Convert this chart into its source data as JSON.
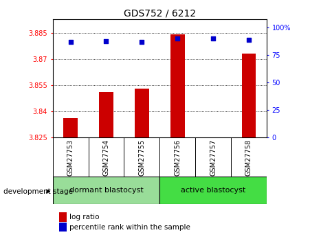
{
  "title": "GDS752 / 6212",
  "samples": [
    "GSM27753",
    "GSM27754",
    "GSM27755",
    "GSM27756",
    "GSM27757",
    "GSM27758"
  ],
  "log_ratio": [
    3.836,
    3.851,
    3.853,
    3.884,
    3.825,
    3.873
  ],
  "percentile_rank": [
    87,
    88,
    87,
    90,
    90,
    89
  ],
  "bar_base": 3.825,
  "ylim": [
    3.825,
    3.893
  ],
  "yticks": [
    3.825,
    3.84,
    3.855,
    3.87,
    3.885
  ],
  "ytick_labels": [
    "3.825",
    "3.84",
    "3.855",
    "3.87",
    "3.885"
  ],
  "y2lim": [
    0,
    108
  ],
  "y2ticks": [
    0,
    25,
    50,
    75,
    100
  ],
  "y2tick_labels": [
    "0",
    "25",
    "50",
    "75",
    "100%"
  ],
  "bar_color": "#cc0000",
  "dot_color": "#0000cc",
  "groups": [
    {
      "label": "dormant blastocyst",
      "indices": [
        0,
        1,
        2
      ],
      "color": "#99dd99"
    },
    {
      "label": "active blastocyst",
      "indices": [
        3,
        4,
        5
      ],
      "color": "#44dd44"
    }
  ],
  "group_label": "development stage",
  "legend_bar_label": "log ratio",
  "legend_dot_label": "percentile rank within the sample",
  "bar_width": 0.4,
  "background_color": "#ffffff",
  "label_box_color": "#cccccc"
}
